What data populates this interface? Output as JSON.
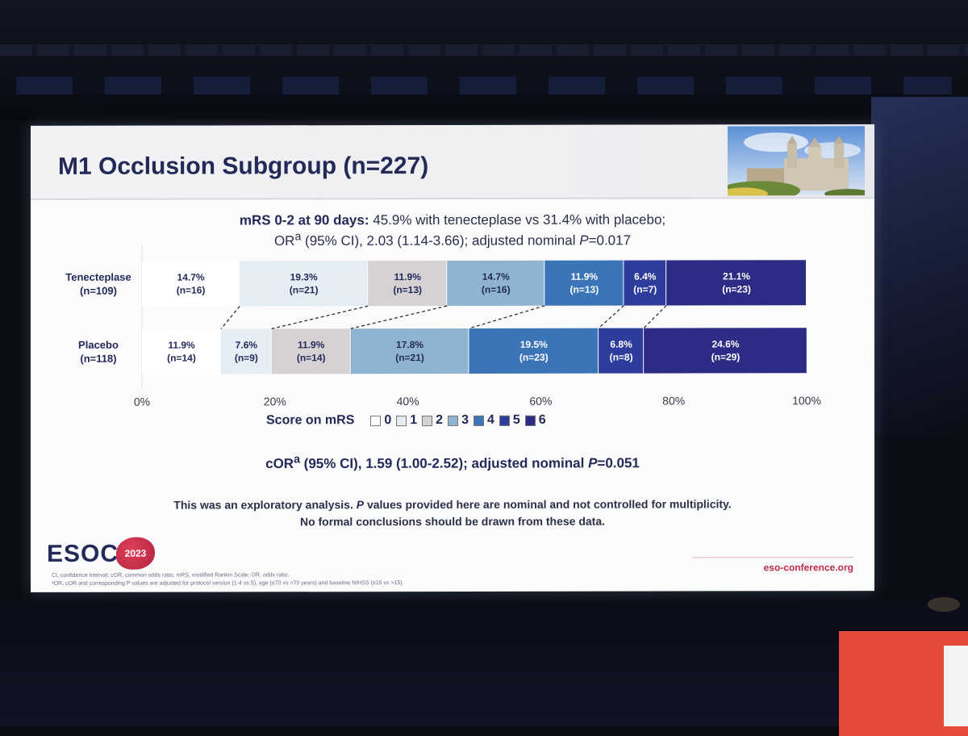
{
  "slide": {
    "title": "M1 Occlusion Subgroup (n=227)",
    "subtitle_bold": "mRS 0-2 at 90 days:",
    "subtitle_rest": " 45.9% with tenecteplase vs 31.4% with placebo;",
    "subtitle_line2_a": "OR",
    "subtitle_line2_sup": "a",
    "subtitle_line2_b": " (95% CI), 2.03 (1.14-3.66); adjusted nominal ",
    "subtitle_line2_p": "P",
    "subtitle_line2_c": "=0.017",
    "cor_a": "cOR",
    "cor_sup": "a",
    "cor_b": " (95% CI), 1.59 (1.00-2.52); adjusted nominal ",
    "cor_p": "P",
    "cor_c": "=0.051",
    "note_line1_a": "This was an exploratory analysis. ",
    "note_line1_p": "P",
    "note_line1_b": " values provided here are nominal and not controlled for multiplicity.",
    "note_line2": "No formal conclusions should be drawn from these data.",
    "footnote_1": "CI, confidence interval; cOR, common odds ratio; mRS, modified Rankin Scale; OR, odds ratio.",
    "footnote_2": "ᵃOR, cOR and corresponding P values are adjusted for protocol version (1-4 vs 5), age (≤70 vs >70 years) and baseline NIHSS (≤15 vs >15).",
    "logo_text": "ESOC",
    "logo_year": "2023",
    "site_url": "eso-conference.org"
  },
  "chart_data": {
    "type": "bar",
    "orientation": "horizontal-stacked-100",
    "xlim": [
      0,
      100
    ],
    "x_ticks": [
      "0%",
      "20%",
      "40%",
      "60%",
      "80%",
      "100%"
    ],
    "legend_title": "Score on mRS",
    "legend_placement": "bottom",
    "categories": [
      "0",
      "1",
      "2",
      "3",
      "4",
      "5",
      "6"
    ],
    "colors": [
      "#ffffff",
      "#e4eef4",
      "#d6d2d4",
      "#8fb4d2",
      "#3c74b8",
      "#2e3c9c",
      "#2c2b86"
    ],
    "rows": [
      {
        "name_line1": "Tenecteplase",
        "name_line2": "(n=109)",
        "values": [
          14.7,
          19.3,
          11.9,
          14.7,
          11.9,
          6.4,
          21.1
        ],
        "pct_labels": [
          "14.7%",
          "19.3%",
          "11.9%",
          "14.7%",
          "11.9%",
          "6.4%",
          "21.1%"
        ],
        "n_labels": [
          "(n=16)",
          "(n=21)",
          "(n=13)",
          "(n=16)",
          "(n=13)",
          "(n=7)",
          "(n=23)"
        ]
      },
      {
        "name_line1": "Placebo",
        "name_line2": "(n=118)",
        "values": [
          11.9,
          7.6,
          11.9,
          17.8,
          19.5,
          6.8,
          24.6
        ],
        "pct_labels": [
          "11.9%",
          "7.6%",
          "11.9%",
          "17.8%",
          "19.5%",
          "6.8%",
          "24.6%"
        ],
        "n_labels": [
          "(n=14)",
          "(n=9)",
          "(n=14)",
          "(n=21)",
          "(n=23)",
          "(n=8)",
          "(n=29)"
        ]
      }
    ]
  }
}
